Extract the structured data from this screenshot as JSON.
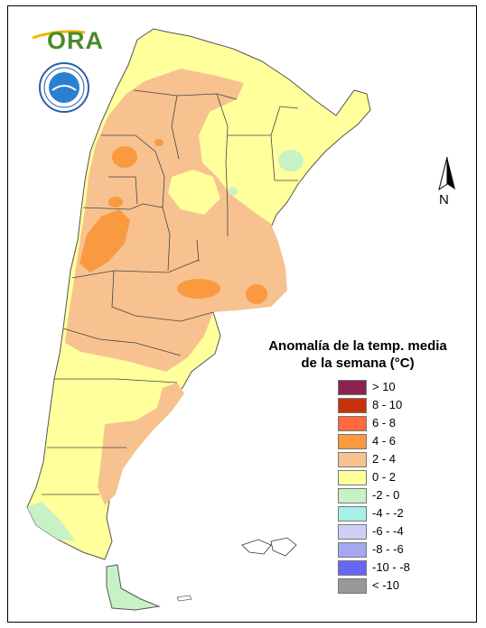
{
  "logo": {
    "text": "ORA"
  },
  "seal": {
    "emblem": "smn-seal-icon"
  },
  "north_arrow": {
    "label": "N"
  },
  "legend": {
    "title_line1": "Anomalía de la temp. media",
    "title_line2": "de la semana (°C)",
    "items": [
      {
        "label": "> 10",
        "color": "#8b2252"
      },
      {
        "label": "8 - 10",
        "color": "#c8320a"
      },
      {
        "label": "6 - 8",
        "color": "#ff6a3c"
      },
      {
        "label": "4 - 6",
        "color": "#f99a40"
      },
      {
        "label": "2 - 4",
        "color": "#f7c28f"
      },
      {
        "label": "0 - 2",
        "color": "#ffff9c"
      },
      {
        "label": "-2 - 0",
        "color": "#c6f2c6"
      },
      {
        "label": "-4 - -2",
        "color": "#a6f0e6"
      },
      {
        "label": "-6 - -4",
        "color": "#cfcff7"
      },
      {
        "label": "-8 - -6",
        "color": "#a6a6f2"
      },
      {
        "label": "-10 - -8",
        "color": "#6666f2"
      },
      {
        "label": "< -10",
        "color": "#989898"
      }
    ]
  }
}
